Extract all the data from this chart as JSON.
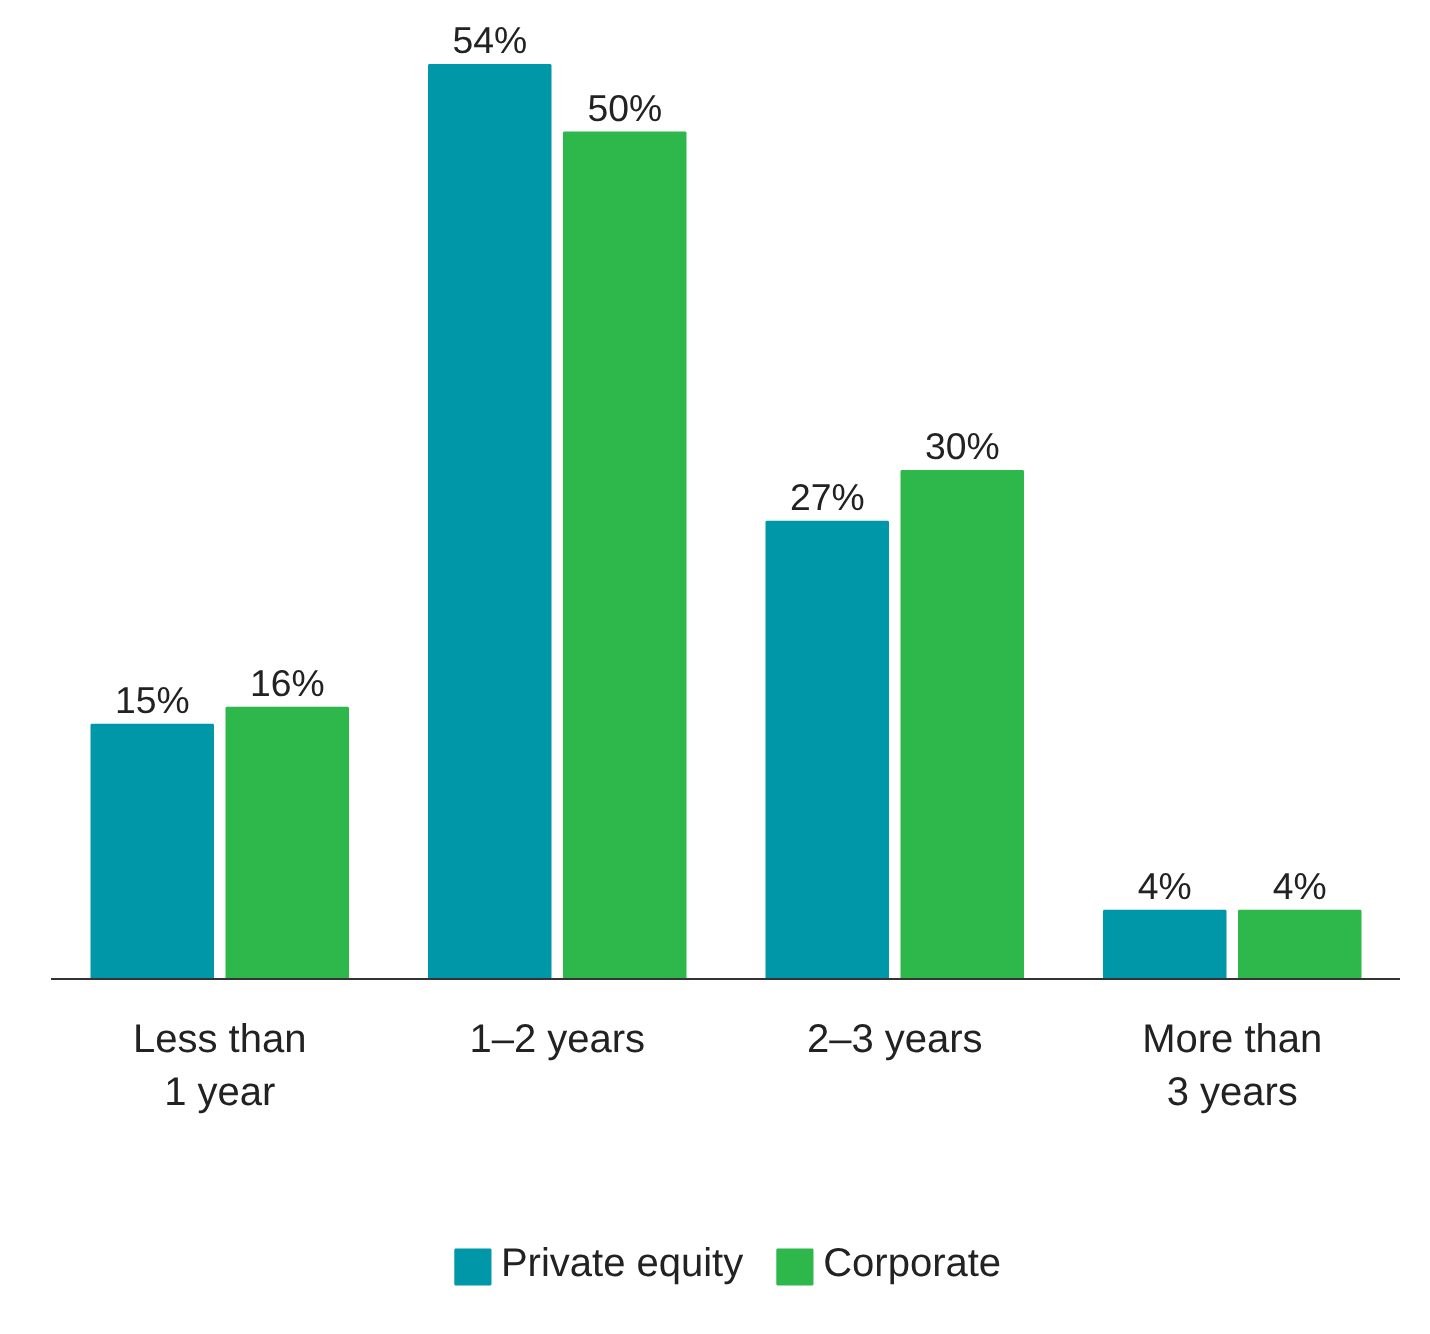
{
  "chart_data": {
    "type": "bar",
    "categories": [
      "Less than\n1 year",
      "1–2 years",
      "2–3 years",
      "More than\n3 years"
    ],
    "series": [
      {
        "name": "Private equity",
        "color": "#0097a9",
        "values": [
          15,
          54,
          27,
          4
        ],
        "value_labels": [
          "15%",
          "54%",
          "27%",
          "4%"
        ]
      },
      {
        "name": "Corporate",
        "color": "#2eb84b",
        "values": [
          16,
          50,
          30,
          4
        ],
        "value_labels": [
          "16%",
          "50%",
          "30%",
          "4%"
        ]
      }
    ],
    "legend": "bottom",
    "grid": false
  }
}
